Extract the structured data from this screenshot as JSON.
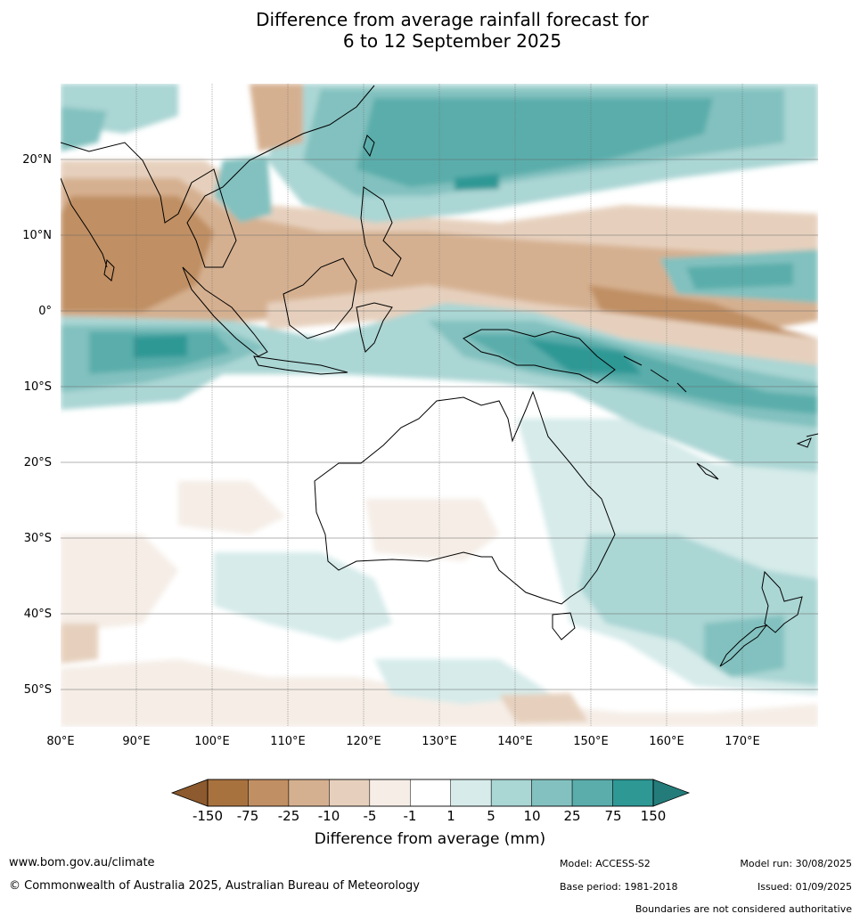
{
  "title": {
    "line1": "Difference from average rainfall forecast for",
    "line2": "6 to 12 September 2025"
  },
  "map": {
    "extent": {
      "lon": [
        80,
        180
      ],
      "lat": [
        -55,
        30
      ]
    },
    "lat_labels": [
      "20°N",
      "10°N",
      "0°",
      "10°S",
      "20°S",
      "30°S",
      "40°S",
      "50°S"
    ],
    "lon_labels": [
      "80°E",
      "90°E",
      "100°E",
      "110°E",
      "120°E",
      "130°E",
      "140°E",
      "150°E",
      "160°E",
      "170°E"
    ]
  },
  "colorbar": {
    "ticks": [
      "-150",
      "-75",
      "-25",
      "-10",
      "-5",
      "-1",
      "1",
      "5",
      "10",
      "25",
      "75",
      "150"
    ],
    "colors": [
      "#a8723f",
      "#c08f63",
      "#d5b090",
      "#e6d0bd",
      "#f5ede6",
      "#ffffff",
      "#d6ebea",
      "#aad6d4",
      "#82c1bf",
      "#5aadab",
      "#2e9895"
    ],
    "low_extend_color": "#8c5a2e",
    "high_extend_color": "#237c7a",
    "label": "Difference from average (mm)"
  },
  "footer": {
    "website": "www.bom.gov.au/climate",
    "copyright": "© Commonwealth of Australia 2025, Australian Bureau of Meteorology",
    "model": "Model: ACCESS-S2",
    "base_period": "Base period: 1981-2018",
    "model_run": "Model run: 30/08/2025",
    "issued": "Issued: 01/09/2025",
    "disclaimer": "Boundaries are not considered authoritative"
  }
}
